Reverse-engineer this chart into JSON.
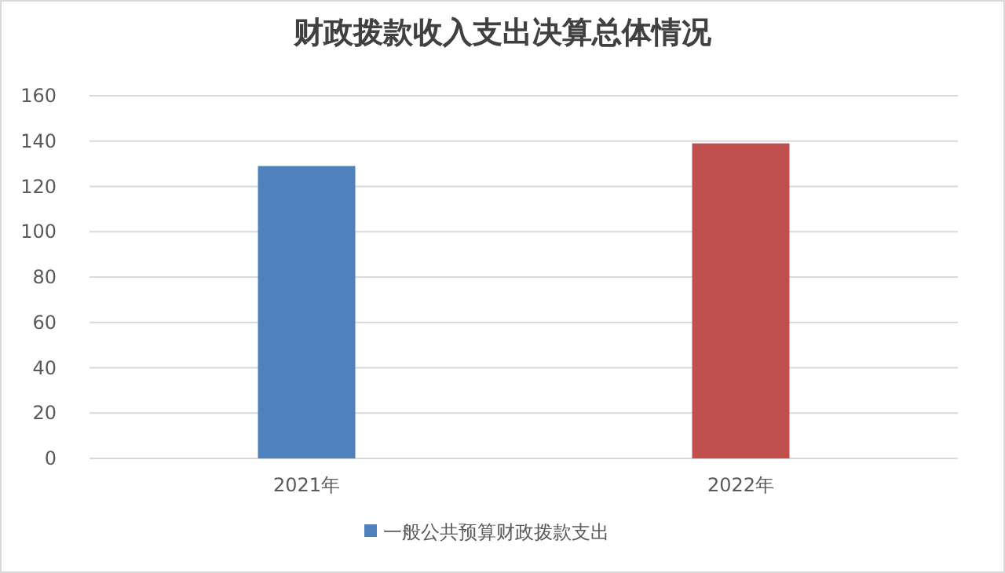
{
  "chart_data": {
    "type": "bar",
    "title": "财政拨款收入支出决算总体情况",
    "categories": [
      "2021年",
      "2022年"
    ],
    "series": [
      {
        "name": "一般公共预算财政拨款支出",
        "values": [
          129,
          139
        ],
        "colors": [
          "#4f81bd",
          "#c0504d"
        ]
      }
    ],
    "ylim": [
      0,
      160
    ],
    "yticks": [
      0,
      20,
      40,
      60,
      80,
      100,
      120,
      140,
      160
    ],
    "grid": "y",
    "legend": "bottom"
  }
}
